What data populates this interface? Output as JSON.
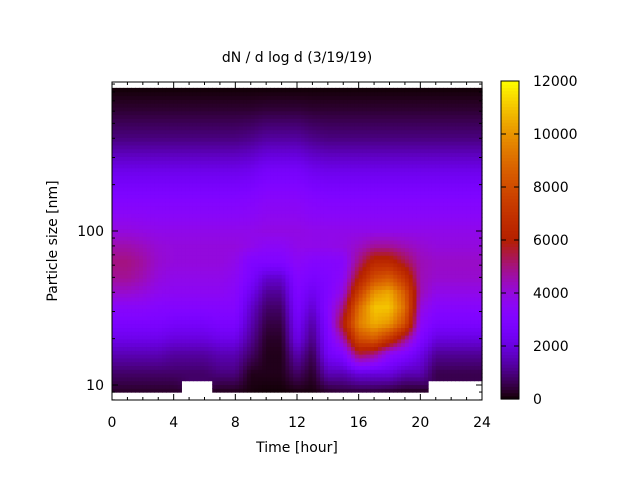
{
  "chart_data": {
    "type": "heatmap",
    "title": "dN / d log d (3/19/19)",
    "xlabel": "Time [hour]",
    "ylabel": "Particle size [nm]",
    "xlim": [
      0,
      24
    ],
    "ylim": [
      8,
      930
    ],
    "yscale": "log",
    "x_ticks": [
      "0",
      "4",
      "8",
      "12",
      "16",
      "20",
      "24"
    ],
    "y_ticks": [
      "10",
      "100"
    ],
    "colorbar": {
      "range": [
        0,
        12000
      ],
      "ticks": [
        "0",
        "2000",
        "4000",
        "6000",
        "8000",
        "10000",
        "12000"
      ],
      "palette": "black-purple-red-orange-yellow"
    },
    "x": [
      0,
      1,
      2,
      3,
      4,
      5,
      6,
      7,
      8,
      9,
      10,
      11,
      12,
      13,
      14,
      15,
      16,
      17,
      18,
      19,
      20,
      21,
      22,
      23,
      24
    ],
    "sizes_nm": [
      9,
      12,
      16,
      20,
      25,
      32,
      40,
      50,
      63,
      80,
      100,
      160,
      250,
      400,
      630,
      850
    ],
    "values": [
      [
        300,
        300,
        300,
        300,
        300,
        null,
        null,
        200,
        200,
        100,
        50,
        50,
        100,
        100,
        300,
        400,
        400,
        400,
        300,
        200,
        200,
        null,
        null,
        null,
        null
      ],
      [
        800,
        800,
        800,
        800,
        800,
        800,
        800,
        1000,
        1000,
        200,
        200,
        200,
        800,
        300,
        1500,
        1500,
        2000,
        2000,
        2000,
        1500,
        1500,
        600,
        600,
        600,
        600
      ],
      [
        1500,
        1500,
        1500,
        1500,
        1300,
        1300,
        1300,
        1500,
        1500,
        800,
        200,
        200,
        1500,
        600,
        2500,
        3000,
        5500,
        5000,
        3500,
        3000,
        2200,
        1200,
        1200,
        1200,
        1200
      ],
      [
        2200,
        2200,
        2200,
        2200,
        2000,
        2000,
        2000,
        2200,
        2200,
        1200,
        300,
        300,
        2200,
        1000,
        2800,
        4500,
        8000,
        8500,
        7000,
        5000,
        3000,
        2000,
        2000,
        2000,
        2000
      ],
      [
        2800,
        2800,
        2800,
        2800,
        2600,
        2600,
        2600,
        2800,
        2800,
        1500,
        500,
        500,
        2500,
        1300,
        3000,
        6000,
        9500,
        10500,
        10000,
        8000,
        3500,
        2800,
        2800,
        2800,
        2800
      ],
      [
        3400,
        3400,
        3400,
        3200,
        3200,
        3200,
        3200,
        3200,
        3200,
        1800,
        800,
        800,
        2800,
        1800,
        3200,
        5000,
        9000,
        11000,
        11000,
        9000,
        4000,
        3300,
        3300,
        3300,
        3300
      ],
      [
        4200,
        4200,
        4000,
        3700,
        3600,
        3600,
        3600,
        3600,
        3400,
        2300,
        1200,
        1200,
        3000,
        2300,
        3000,
        4000,
        7500,
        10000,
        10500,
        8500,
        4500,
        3800,
        3800,
        3800,
        3800
      ],
      [
        4800,
        4800,
        4500,
        4000,
        3800,
        3800,
        3800,
        3800,
        3600,
        2800,
        1800,
        1800,
        3200,
        2800,
        3000,
        3500,
        6000,
        8000,
        8500,
        7000,
        4500,
        4200,
        4200,
        4200,
        4200
      ],
      [
        5000,
        5000,
        4700,
        4200,
        4000,
        4000,
        4000,
        4000,
        3800,
        3000,
        3000,
        3000,
        3500,
        3200,
        3200,
        3300,
        5000,
        6500,
        6500,
        5500,
        4500,
        4300,
        4300,
        4300,
        4300
      ],
      [
        4600,
        4600,
        4400,
        4100,
        4000,
        4000,
        4000,
        4000,
        4000,
        3800,
        3500,
        3500,
        3800,
        3800,
        3800,
        3900,
        4300,
        4800,
        4800,
        4500,
        4200,
        4000,
        4000,
        4000,
        4000
      ],
      [
        4000,
        4000,
        3900,
        3800,
        3800,
        3800,
        3800,
        3800,
        3800,
        3800,
        3900,
        3900,
        3900,
        3800,
        3800,
        3800,
        3800,
        3800,
        3800,
        3800,
        3800,
        3800,
        3800,
        3800,
        3800
      ],
      [
        3100,
        3100,
        3100,
        3100,
        3100,
        3100,
        3100,
        3100,
        3100,
        3200,
        3400,
        3400,
        3400,
        3200,
        3100,
        3100,
        3100,
        3100,
        3100,
        3100,
        3100,
        3100,
        3100,
        3100,
        3100
      ],
      [
        2200,
        2200,
        2200,
        2200,
        2200,
        2200,
        2200,
        2200,
        2200,
        2300,
        2600,
        2600,
        2600,
        2300,
        2200,
        2200,
        2200,
        2200,
        2200,
        2200,
        2200,
        2200,
        2200,
        2200,
        2200
      ],
      [
        1000,
        1000,
        1000,
        1000,
        1000,
        1000,
        1000,
        1000,
        1000,
        1100,
        1300,
        1300,
        1300,
        1100,
        1000,
        1000,
        1000,
        1000,
        1000,
        1000,
        1000,
        1000,
        1000,
        1000,
        1000
      ],
      [
        350,
        350,
        350,
        350,
        350,
        350,
        350,
        350,
        350,
        350,
        400,
        400,
        400,
        350,
        350,
        350,
        350,
        350,
        350,
        350,
        350,
        350,
        350,
        350,
        350
      ],
      [
        50,
        50,
        50,
        50,
        50,
        50,
        50,
        50,
        50,
        50,
        50,
        50,
        50,
        50,
        50,
        50,
        50,
        50,
        50,
        50,
        50,
        50,
        50,
        50,
        50
      ]
    ]
  }
}
